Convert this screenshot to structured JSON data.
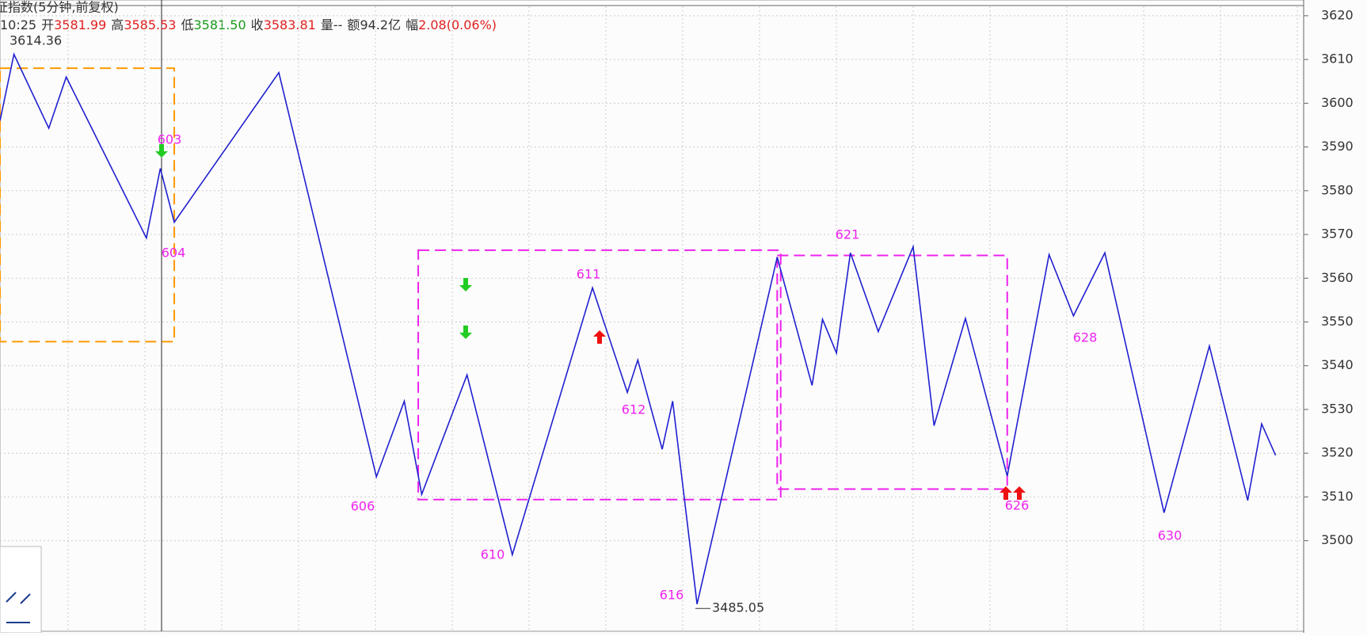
{
  "header": {
    "title": "证指数(5分钟,前复权)",
    "time": "10:25",
    "fields": [
      {
        "label": "开",
        "value": "3581.99"
      },
      {
        "label": "高",
        "value": "3585.53"
      },
      {
        "label": "低",
        "value": "3581.50"
      },
      {
        "label": "收",
        "value": "3583.81"
      },
      {
        "label": "量",
        "value": "--"
      },
      {
        "label": "额",
        "value": "94.2亿"
      },
      {
        "label": "幅",
        "value": "2.08(0.06%)"
      }
    ]
  },
  "chart_data": {
    "type": "line",
    "series": [
      {
        "name": "zigzag",
        "color": "#2020d0",
        "x": [
          0,
          4,
          14,
          19,
          42,
          46,
          50,
          80,
          108,
          116,
          121,
          134,
          147,
          170,
          180,
          183,
          190,
          193,
          200,
          223,
          233,
          236,
          240,
          244,
          252,
          262,
          268,
          277,
          289,
          301,
          308,
          317,
          334,
          347,
          358,
          362,
          366
        ],
        "values": [
          3596,
          3611.2,
          3594.3,
          3606,
          3569.2,
          3585.1,
          3572.8,
          3607,
          3514.6,
          3531.9,
          3510.6,
          3537.9,
          3496.8,
          3557.8,
          3533.9,
          3541.3,
          3520.9,
          3531.9,
          3485.5,
          3564.8,
          3535.5,
          3550.6,
          3542.9,
          3565.8,
          3547.8,
          3567.2,
          3526.3,
          3550.8,
          3514.8,
          3565.4,
          3551.4,
          3565.8,
          3506.4,
          3544.5,
          3509.2,
          3526.7,
          3519.5
        ]
      }
    ],
    "boxes": [
      {
        "color": "#ff9900",
        "x": [
          0,
          50
        ],
        "values": [
          3608,
          3545.5
        ]
      },
      {
        "color": "#ee22ee",
        "x": [
          120,
          224
        ],
        "values": [
          3566.4,
          3509.4
        ]
      },
      {
        "color": "#ee22ee",
        "x": [
          223,
          289
        ],
        "values": [
          3565.2,
          3511.8
        ]
      }
    ],
    "wave_labels": [
      "603",
      "604",
      "606",
      "610",
      "611",
      "612",
      "616",
      "621",
      "626",
      "628",
      "630"
    ],
    "high": 3614.36,
    "low": 3485.05,
    "xlim": [
      0,
      372
    ],
    "ylim": [
      3479.3,
      3623.6
    ],
    "yticks": [
      3500,
      3510,
      3520,
      3530,
      3540,
      3550,
      3560,
      3570,
      3580,
      3590,
      3600,
      3610,
      3620
    ],
    "grid": true
  }
}
